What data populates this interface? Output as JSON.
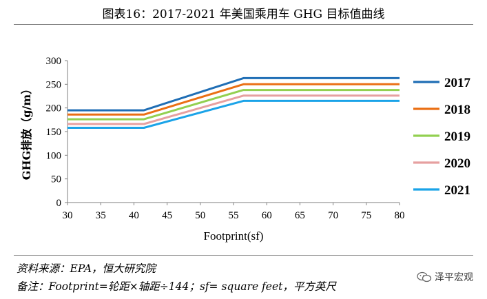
{
  "title": "图表16：2017-2021 年美国乘用车 GHG 目标值曲线",
  "source": "资料来源：EPA，恒大研究院",
  "note": "备注：Footprint=轮距×轴距÷144；sf= square feet，平方英尺",
  "watermark": "泽平宏观",
  "chart_data": {
    "type": "line",
    "title": "",
    "xlabel": "Footprint(sf)",
    "ylabel": "GHG排放（g/m）",
    "xlim": [
      30,
      80
    ],
    "ylim": [
      0,
      300
    ],
    "xticks": [
      30,
      35,
      40,
      45,
      50,
      55,
      60,
      65,
      70,
      75,
      80
    ],
    "yticks": [
      0,
      50,
      100,
      150,
      200,
      250,
      300
    ],
    "grid": false,
    "legend_position": "right",
    "series": [
      {
        "name": "2017",
        "color": "#1f6eb5",
        "points": [
          [
            30,
            195
          ],
          [
            41.5,
            195
          ],
          [
            56.5,
            263
          ],
          [
            80,
            263
          ]
        ]
      },
      {
        "name": "2018",
        "color": "#ea6f14",
        "points": [
          [
            30,
            186
          ],
          [
            41.5,
            186
          ],
          [
            56.5,
            250
          ],
          [
            80,
            250
          ]
        ]
      },
      {
        "name": "2019",
        "color": "#92d050",
        "points": [
          [
            30,
            176
          ],
          [
            41.5,
            176
          ],
          [
            56.5,
            238
          ],
          [
            80,
            238
          ]
        ]
      },
      {
        "name": "2020",
        "color": "#e6a0a0",
        "points": [
          [
            30,
            166
          ],
          [
            41.5,
            166
          ],
          [
            56.5,
            226
          ],
          [
            80,
            226
          ]
        ]
      },
      {
        "name": "2021",
        "color": "#1aa3e8",
        "points": [
          [
            30,
            158
          ],
          [
            41.5,
            158
          ],
          [
            56.5,
            215
          ],
          [
            80,
            215
          ]
        ]
      }
    ]
  }
}
